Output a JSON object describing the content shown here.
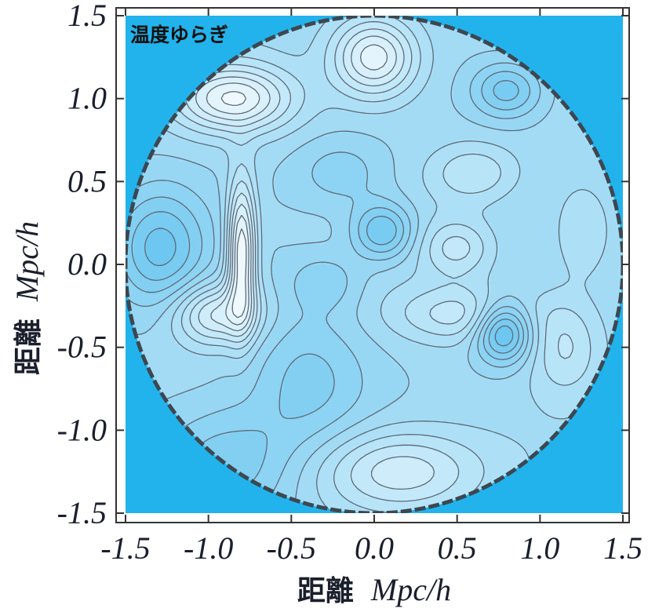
{
  "chart_data": {
    "type": "heatmap",
    "subtype": "contour",
    "title": "温度ゆらぎ",
    "xlabel": {
      "text": "距離",
      "unit": "Mpc/h"
    },
    "ylabel": {
      "text": "距離",
      "unit": "Mpc/h"
    },
    "xlim": [
      -1.5,
      1.5
    ],
    "ylim": [
      -1.5,
      1.5
    ],
    "xticks": [
      -1.5,
      -1.0,
      -0.5,
      0.0,
      0.5,
      1.0,
      1.5
    ],
    "yticks": [
      -1.5,
      -1.0,
      -0.5,
      0.0,
      0.5,
      1.0,
      1.5
    ],
    "xtick_labels": [
      "-1.5",
      "-1.0",
      "-0.5",
      "0.0",
      "0.5",
      "1.0",
      "1.5"
    ],
    "ytick_labels": [
      "-1.5",
      "-1.0",
      "-0.5",
      "0.0",
      "0.5",
      "1.0",
      "1.5"
    ],
    "domain": {
      "shape": "circle",
      "center": [
        0.0,
        0.0
      ],
      "radius": 1.5
    },
    "colors": {
      "background": "#22b3ec",
      "frame": "#333333",
      "contour_line": "#5d6a78",
      "low": "#62c3ef",
      "high": "#eef8fd"
    },
    "features": [
      {
        "type": "max",
        "x": 0.0,
        "y": 1.25,
        "amplitude": 1.0,
        "sx": 0.18,
        "sy": 0.17
      },
      {
        "type": "max",
        "x": -0.85,
        "y": 1.0,
        "amplitude": 1.0,
        "sx": 0.25,
        "sy": 0.14
      },
      {
        "type": "max",
        "x": -0.8,
        "y": 0.08,
        "amplitude": 1.2,
        "sx": 0.06,
        "sy": 0.3
      },
      {
        "type": "max",
        "x": -0.95,
        "y": -0.3,
        "amplitude": 0.8,
        "sx": 0.18,
        "sy": 0.13
      },
      {
        "type": "max",
        "x": 0.55,
        "y": -0.3,
        "amplitude": 0.5,
        "sx": 0.3,
        "sy": 0.12
      },
      {
        "type": "max",
        "x": 0.5,
        "y": 0.1,
        "amplitude": 0.45,
        "sx": 0.15,
        "sy": 0.12
      },
      {
        "type": "max",
        "x": 0.6,
        "y": 0.55,
        "amplitude": 0.4,
        "sx": 0.18,
        "sy": 0.12
      },
      {
        "type": "max",
        "x": 0.15,
        "y": -1.25,
        "amplitude": 0.7,
        "sx": 0.35,
        "sy": 0.18
      },
      {
        "type": "max",
        "x": 1.15,
        "y": -0.5,
        "amplitude": 0.4,
        "sx": 0.15,
        "sy": 0.2
      },
      {
        "type": "max",
        "x": 1.25,
        "y": 0.2,
        "amplitude": 0.3,
        "sx": 0.12,
        "sy": 0.2
      },
      {
        "type": "min",
        "x": 0.78,
        "y": -0.4,
        "amplitude": 1.0,
        "sx": 0.12,
        "sy": 0.13
      },
      {
        "type": "min",
        "x": 0.05,
        "y": 0.2,
        "amplitude": 0.7,
        "sx": 0.13,
        "sy": 0.12
      },
      {
        "type": "min",
        "x": -1.3,
        "y": 0.1,
        "amplitude": 0.7,
        "sx": 0.2,
        "sy": 0.25
      },
      {
        "type": "min",
        "x": 0.8,
        "y": 1.05,
        "amplitude": 0.6,
        "sx": 0.15,
        "sy": 0.12
      },
      {
        "type": "min",
        "x": -0.9,
        "y": -1.2,
        "amplitude": 0.5,
        "sx": 0.3,
        "sy": 0.25
      },
      {
        "type": "min",
        "x": -0.4,
        "y": -0.7,
        "amplitude": 0.4,
        "sx": 0.25,
        "sy": 0.3
      },
      {
        "type": "min",
        "x": -0.2,
        "y": 0.55,
        "amplitude": 0.3,
        "sx": 0.2,
        "sy": 0.15
      },
      {
        "type": "min",
        "x": -0.3,
        "y": -0.1,
        "amplitude": 0.3,
        "sx": 0.15,
        "sy": 0.12
      }
    ],
    "contour_levels": [
      -0.75,
      -0.6,
      -0.45,
      -0.3,
      -0.15,
      0.0,
      0.15,
      0.3,
      0.45,
      0.6,
      0.75,
      0.9,
      1.05
    ]
  }
}
